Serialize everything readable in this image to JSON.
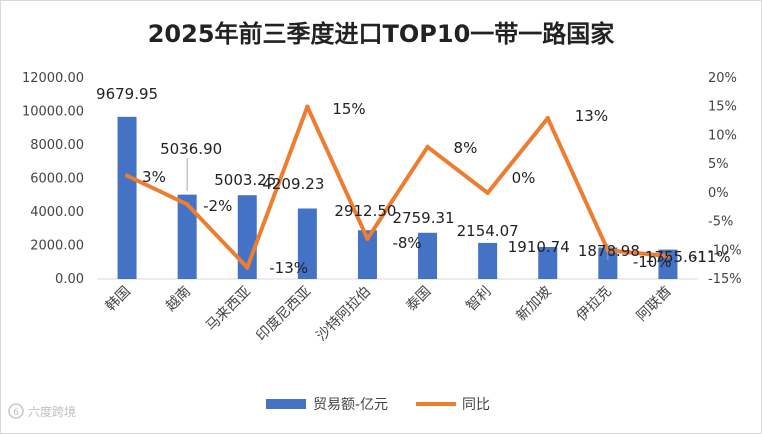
{
  "chart_data": {
    "type": "bar+line",
    "title": "2025年前三季度进口TOP10一带一路国家",
    "categories": [
      "韩国",
      "越南",
      "马来西亚",
      "印度尼西亚",
      "沙特阿拉伯",
      "泰国",
      "智利",
      "新加坡",
      "伊拉克",
      "阿联酋"
    ],
    "series": [
      {
        "name": "贸易额-亿元",
        "type": "bar",
        "axis": "left",
        "color": "#4472C4",
        "values": [
          9679.95,
          5036.9,
          5003.25,
          4209.23,
          2912.5,
          2759.31,
          2154.07,
          1910.74,
          1878.98,
          1755.61
        ],
        "labels": [
          "9679.95",
          "5036.90",
          "5003.25",
          "4209.23",
          "2912.50",
          "2759.31",
          "2154.07",
          "1910.74",
          "1878.98",
          "1755.61"
        ]
      },
      {
        "name": "同比",
        "type": "line",
        "axis": "right",
        "color": "#ED7D31",
        "values": [
          3,
          -2,
          -13,
          15,
          -8,
          8,
          0,
          13,
          -10,
          -11
        ],
        "labels": [
          "3%",
          "-2%",
          "-13%",
          "15%",
          "-8%",
          "8%",
          "0%",
          "13%",
          "-10%",
          "-11%"
        ]
      }
    ],
    "left_axis": {
      "min": 0,
      "max": 12000,
      "step": 2000,
      "ticks": [
        "0.00",
        "2000.00",
        "4000.00",
        "6000.00",
        "8000.00",
        "10000.00",
        "12000.00"
      ]
    },
    "right_axis": {
      "min": -15,
      "max": 20,
      "step": 5,
      "ticks": [
        "-15%",
        "-10%",
        "-5%",
        "0%",
        "5%",
        "10%",
        "15%",
        "20%"
      ]
    },
    "legend": [
      "贸易额-亿元",
      "同比"
    ],
    "legend_position": "bottom"
  },
  "watermark": "六度跨境",
  "logo_text": "6"
}
